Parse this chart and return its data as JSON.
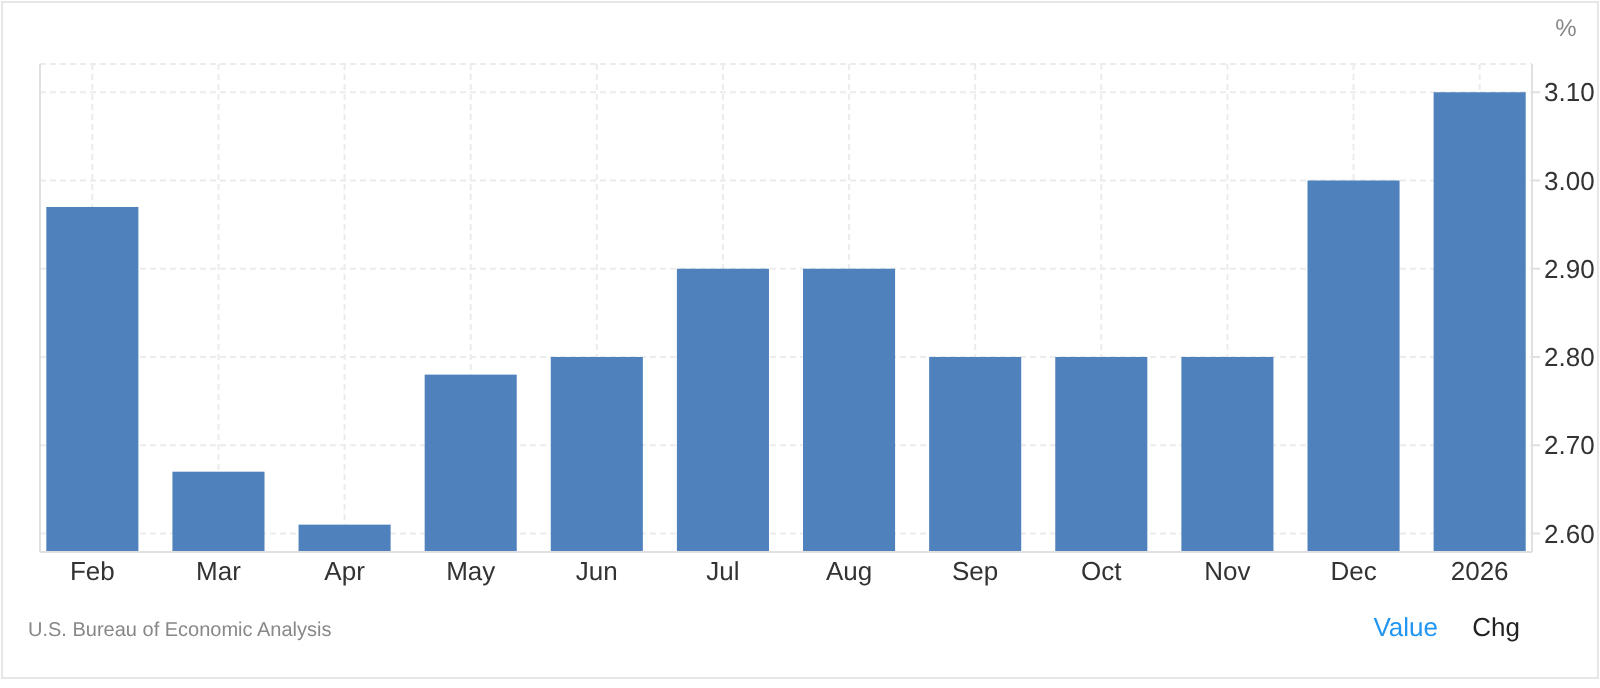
{
  "chart_data": {
    "type": "bar",
    "ylabel": "%",
    "categories": [
      "Feb",
      "Mar",
      "Apr",
      "May",
      "Jun",
      "Jul",
      "Aug",
      "Sep",
      "Oct",
      "Nov",
      "Dec",
      "2026"
    ],
    "values": [
      2.97,
      2.67,
      2.61,
      2.78,
      2.8,
      2.9,
      2.9,
      2.8,
      2.8,
      2.8,
      3.0,
      3.1
    ],
    "color": "#4f81bd",
    "ylim": [
      2.579,
      3.132
    ],
    "yticks": [
      {
        "value": 2.6,
        "label": "2.60"
      },
      {
        "value": 2.7,
        "label": "2.70"
      },
      {
        "value": 2.8,
        "label": "2.80"
      },
      {
        "value": 2.9,
        "label": "2.90"
      },
      {
        "value": 3.0,
        "label": "3.00"
      },
      {
        "value": 3.1,
        "label": "3.10"
      }
    ],
    "grid": true,
    "annotations": [
      "U.S. Bureau of Economic Analysis",
      "Value",
      "Chg"
    ]
  }
}
